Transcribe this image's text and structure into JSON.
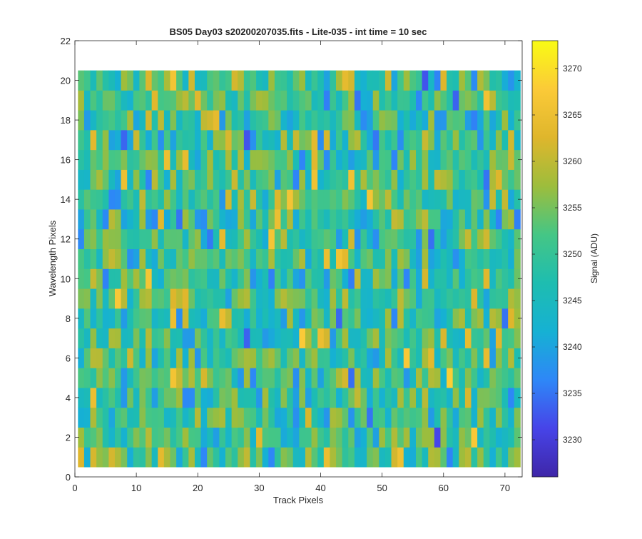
{
  "chart_data": {
    "type": "heatmap",
    "title": "BS05 Day03  s20200207035.fits - Lite-035 - int time = 10 sec",
    "xlabel": "Track Pixels",
    "ylabel": "Wavelength Pixels",
    "xlim": [
      0,
      72.8
    ],
    "ylim": [
      0,
      22
    ],
    "xticks": [
      "0",
      "10",
      "20",
      "30",
      "40",
      "50",
      "60",
      "70"
    ],
    "yticks": [
      "0",
      "2",
      "4",
      "6",
      "8",
      "10",
      "12",
      "14",
      "16",
      "18",
      "20",
      "22"
    ],
    "grid": false,
    "cells": {
      "x_range": [
        1,
        72
      ],
      "y_range": [
        1,
        20
      ],
      "cell_width": 1,
      "cell_height": 1,
      "note": "72 x 20 cells with pixel-by-pixel signal values ranging about 3226-3273 ADU"
    },
    "colorbar": {
      "label": "Signal (ADU)",
      "min": 3226,
      "max": 3273,
      "ticks": [
        "3230",
        "3235",
        "3240",
        "3245",
        "3250",
        "3255",
        "3260",
        "3265",
        "3270"
      ],
      "colormap": [
        "#3e26a8",
        "#4744e8",
        "#2e87f7",
        "#16b1d3",
        "#1ebdb0",
        "#45c685",
        "#9dbd3c",
        "#dfb62c",
        "#fbca38",
        "#f9fb14"
      ]
    }
  }
}
